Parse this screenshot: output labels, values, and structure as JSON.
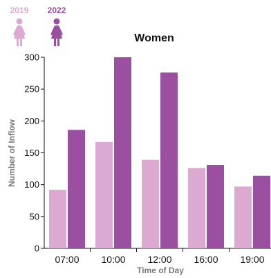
{
  "colors": {
    "c2019": "#dba9d2",
    "c2022": "#9b4fa0",
    "axis": "#111111",
    "label": "#777777"
  },
  "legend": [
    {
      "label": "2019",
      "icon": "woman-icon",
      "color": "#dba9d2"
    },
    {
      "label": "2022",
      "icon": "woman-icon",
      "color": "#9b4fa0"
    }
  ],
  "chart_data": {
    "type": "bar",
    "title": "Women",
    "xlabel": "Time of Day",
    "ylabel": "Number of Inflow",
    "categories": [
      "07:00",
      "10:00",
      "12:00",
      "16:00",
      "19:00"
    ],
    "series": [
      {
        "name": "2019",
        "values": [
          92,
          167,
          139,
          126,
          97
        ]
      },
      {
        "name": "2022",
        "values": [
          186,
          300,
          276,
          131,
          114
        ]
      }
    ],
    "ylim": [
      0,
      300
    ],
    "yticks": [
      0,
      50,
      100,
      150,
      200,
      250,
      300
    ],
    "grid": false,
    "legend_position": "top-left"
  }
}
